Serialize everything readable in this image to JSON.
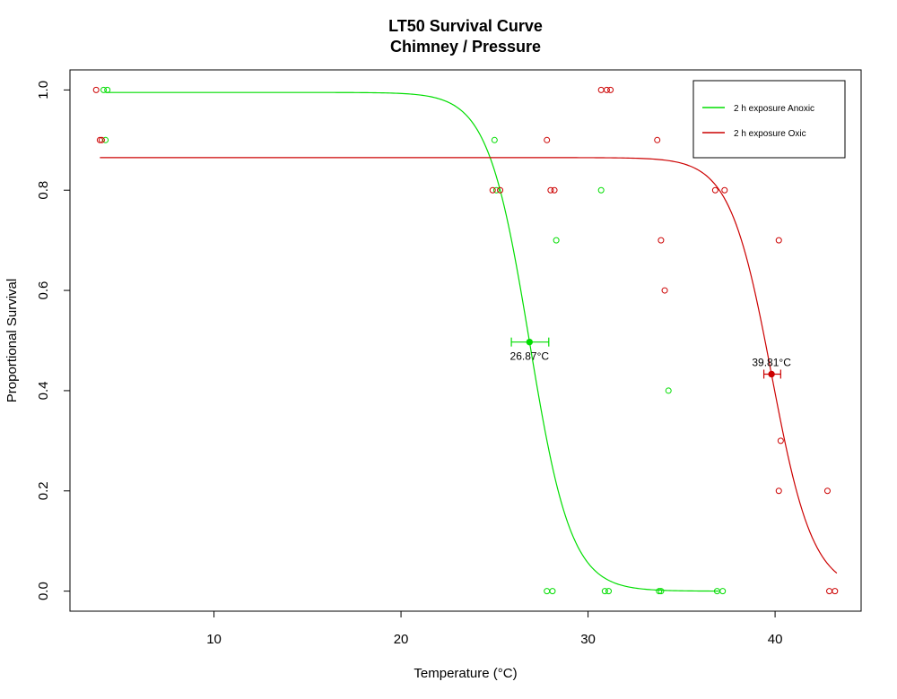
{
  "chart_data": {
    "type": "scatter",
    "title": "LT50 Survival Curve",
    "subtitle": "Chimney / Pressure",
    "xlabel": "Temperature (°C)",
    "ylabel": "Proportional Survival",
    "xlim": [
      2.3,
      44.6
    ],
    "ylim": [
      -0.04,
      1.04
    ],
    "xticks": [
      10,
      20,
      30,
      40
    ],
    "yticks": [
      0.0,
      0.2,
      0.4,
      0.6,
      0.8,
      1.0
    ],
    "xtick_labels": [
      "10",
      "20",
      "30",
      "40"
    ],
    "ytick_labels": [
      "0.0",
      "0.2",
      "0.4",
      "0.6",
      "0.8",
      "1.0"
    ],
    "grid": false,
    "legend_position": "top-right",
    "series": [
      {
        "name": "2 h exposure  Anoxic",
        "color": "#00dd00",
        "curve": {
          "top": 0.995,
          "lt50": 26.87,
          "slope": 0.9,
          "x_range": [
            4.2,
            37.0
          ]
        },
        "lt50": {
          "value": 26.87,
          "y": 0.497,
          "ci": [
            25.9,
            27.9
          ],
          "label": "26.87°C"
        },
        "points": [
          {
            "x": 4.1,
            "y": 1.0
          },
          {
            "x": 4.3,
            "y": 1.0
          },
          {
            "x": 4.2,
            "y": 0.9
          },
          {
            "x": 25.0,
            "y": 0.9
          },
          {
            "x": 25.1,
            "y": 0.8
          },
          {
            "x": 28.3,
            "y": 0.7
          },
          {
            "x": 30.7,
            "y": 0.8
          },
          {
            "x": 34.3,
            "y": 0.4
          },
          {
            "x": 27.8,
            "y": 0.0
          },
          {
            "x": 28.1,
            "y": 0.0
          },
          {
            "x": 30.9,
            "y": 0.0
          },
          {
            "x": 31.1,
            "y": 0.0
          },
          {
            "x": 33.8,
            "y": 0.0
          },
          {
            "x": 33.9,
            "y": 0.0
          },
          {
            "x": 36.9,
            "y": 0.0
          },
          {
            "x": 37.2,
            "y": 0.0
          }
        ]
      },
      {
        "name": "2 h exposure  Oxic",
        "color": "#cc0000",
        "curve": {
          "top": 0.865,
          "lt50": 39.81,
          "slope": 0.9,
          "x_range": [
            3.9,
            43.3
          ]
        },
        "lt50": {
          "value": 39.81,
          "y": 0.433,
          "ci": [
            39.4,
            40.3
          ],
          "label": "39.81°C"
        },
        "points": [
          {
            "x": 3.7,
            "y": 1.0
          },
          {
            "x": 3.9,
            "y": 0.9
          },
          {
            "x": 4.0,
            "y": 0.9
          },
          {
            "x": 24.9,
            "y": 0.8
          },
          {
            "x": 25.3,
            "y": 0.8
          },
          {
            "x": 27.8,
            "y": 0.9
          },
          {
            "x": 28.0,
            "y": 0.8
          },
          {
            "x": 28.2,
            "y": 0.8
          },
          {
            "x": 30.7,
            "y": 1.0
          },
          {
            "x": 31.0,
            "y": 1.0
          },
          {
            "x": 31.2,
            "y": 1.0
          },
          {
            "x": 33.7,
            "y": 0.9
          },
          {
            "x": 33.9,
            "y": 0.7
          },
          {
            "x": 34.1,
            "y": 0.6
          },
          {
            "x": 36.8,
            "y": 0.8
          },
          {
            "x": 37.3,
            "y": 0.8
          },
          {
            "x": 40.2,
            "y": 0.7
          },
          {
            "x": 40.3,
            "y": 0.3
          },
          {
            "x": 40.2,
            "y": 0.2
          },
          {
            "x": 42.8,
            "y": 0.2
          },
          {
            "x": 42.9,
            "y": 0.0
          },
          {
            "x": 43.2,
            "y": 0.0
          }
        ]
      }
    ]
  }
}
